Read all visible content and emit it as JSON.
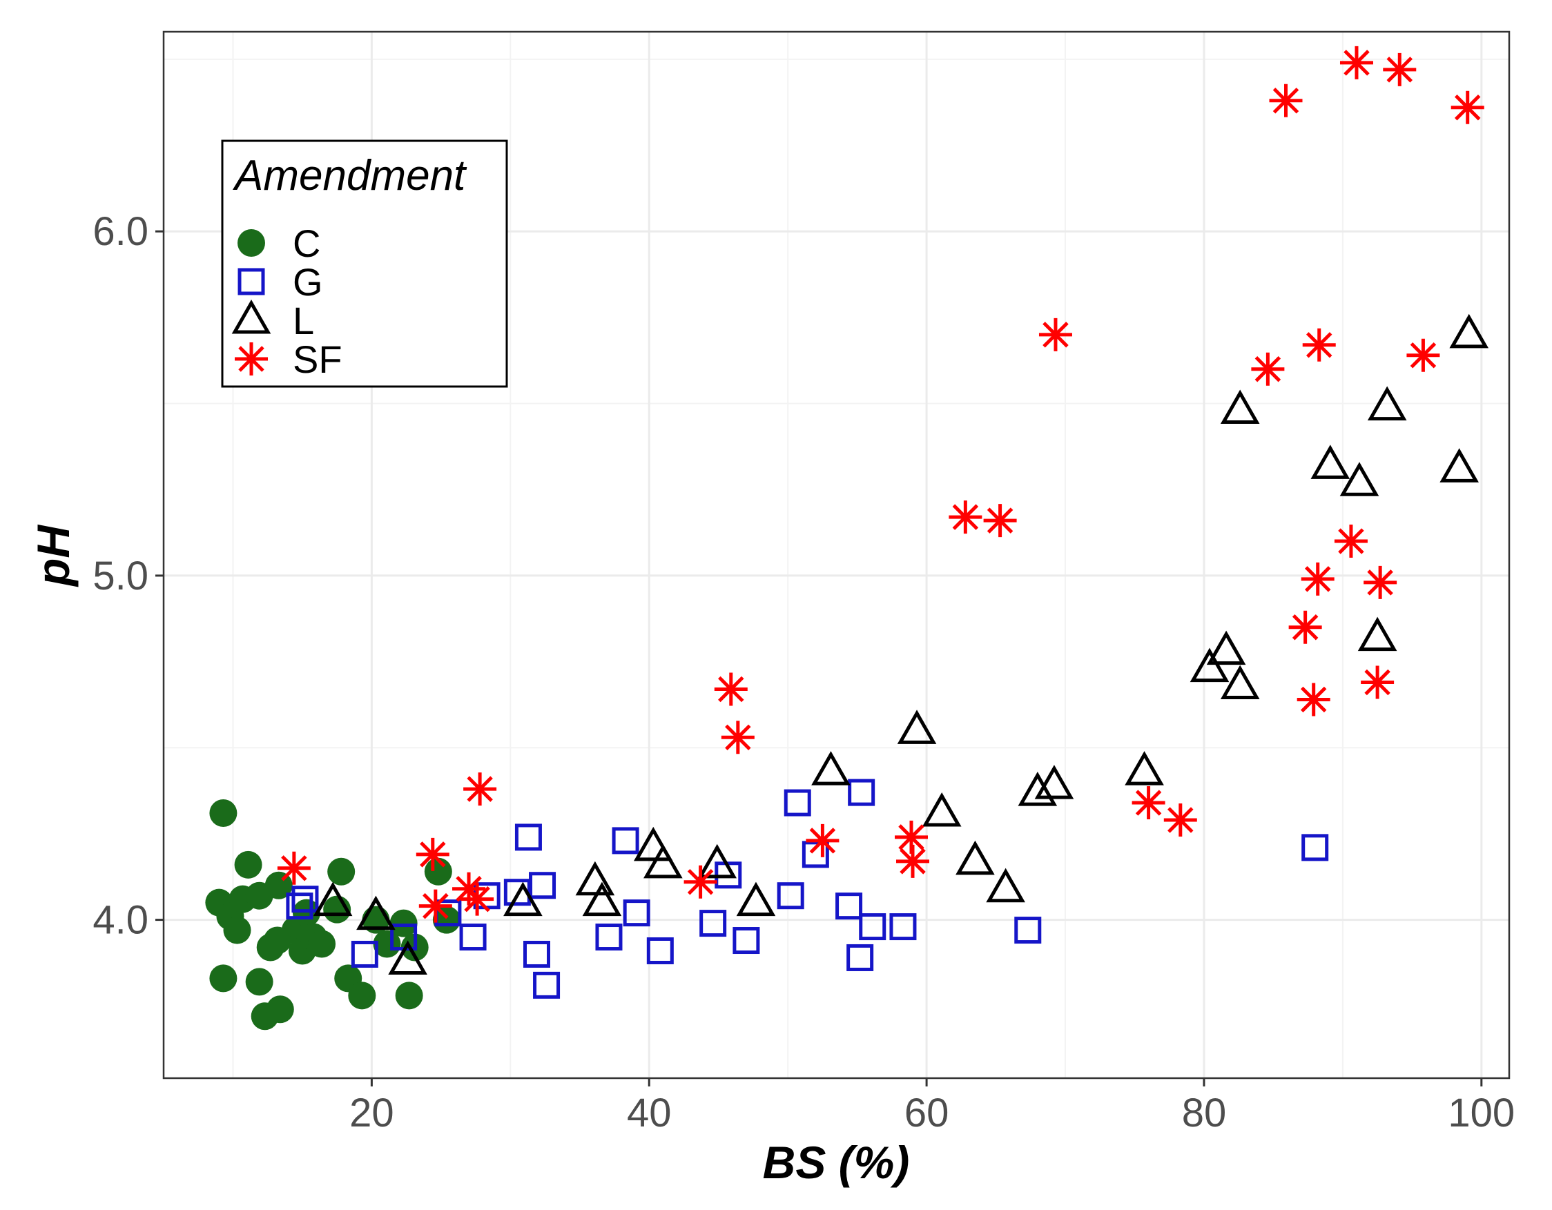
{
  "chart_data": {
    "type": "scatter",
    "xlabel": "BS (%)",
    "ylabel": "pH",
    "xlim": [
      5,
      102
    ],
    "ylim": [
      3.54,
      6.58
    ],
    "x_ticks": [
      20,
      40,
      60,
      80,
      100
    ],
    "x_tick_labels": [
      "20",
      "40",
      "60",
      "80",
      "100"
    ],
    "y_ticks": [
      4.0,
      5.0,
      6.0
    ],
    "y_tick_labels": [
      "4.0",
      "5.0",
      "6.0"
    ],
    "grid": true,
    "legend": {
      "title": "Amendment",
      "position": "top-left"
    },
    "series": [
      {
        "name": "C",
        "marker": "circle",
        "color": "#1a6b1a",
        "points": [
          [
            9.3,
            4.31
          ],
          [
            9.0,
            4.05
          ],
          [
            9.8,
            4.01
          ],
          [
            10.3,
            3.97
          ],
          [
            10.7,
            4.06
          ],
          [
            11.1,
            4.16
          ],
          [
            11.9,
            4.07
          ],
          [
            9.3,
            3.83
          ],
          [
            11.9,
            3.82
          ],
          [
            12.3,
            3.72
          ],
          [
            12.7,
            3.92
          ],
          [
            13.3,
            4.1
          ],
          [
            13.4,
            3.74
          ],
          [
            14.5,
            3.97
          ],
          [
            15.0,
            3.91
          ],
          [
            15.3,
            4.02
          ],
          [
            15.8,
            3.95
          ],
          [
            16.4,
            3.93
          ],
          [
            17.8,
            4.14
          ],
          [
            17.5,
            4.03
          ],
          [
            18.3,
            3.83
          ],
          [
            19.3,
            3.78
          ],
          [
            20.3,
            4.0
          ],
          [
            21.1,
            3.93
          ],
          [
            22.3,
            3.99
          ],
          [
            23.1,
            3.92
          ],
          [
            22.7,
            3.78
          ],
          [
            24.8,
            4.14
          ],
          [
            25.4,
            4.0
          ],
          [
            13.2,
            3.94
          ]
        ]
      },
      {
        "name": "G",
        "marker": "square",
        "color": "#1515c8",
        "points": [
          [
            14.8,
            4.04
          ],
          [
            15.2,
            4.06
          ],
          [
            19.5,
            3.9
          ],
          [
            22.3,
            3.95
          ],
          [
            25.5,
            4.02
          ],
          [
            27.3,
            3.95
          ],
          [
            28.3,
            4.07
          ],
          [
            30.5,
            4.08
          ],
          [
            31.3,
            4.24
          ],
          [
            31.9,
            3.9
          ],
          [
            32.3,
            4.1
          ],
          [
            32.6,
            3.81
          ],
          [
            37.1,
            3.95
          ],
          [
            38.3,
            4.23
          ],
          [
            39.1,
            4.02
          ],
          [
            40.8,
            3.91
          ],
          [
            44.6,
            3.99
          ],
          [
            45.7,
            4.13
          ],
          [
            47.0,
            3.94
          ],
          [
            50.2,
            4.07
          ],
          [
            50.7,
            4.34
          ],
          [
            52.0,
            4.19
          ],
          [
            54.4,
            4.04
          ],
          [
            55.3,
            4.37
          ],
          [
            55.2,
            3.89
          ],
          [
            56.1,
            3.98
          ],
          [
            58.3,
            3.98
          ],
          [
            67.3,
            3.97
          ],
          [
            88.0,
            4.21
          ]
        ]
      },
      {
        "name": "L",
        "marker": "triangle",
        "color": "#000000",
        "points": [
          [
            17.2,
            4.05
          ],
          [
            20.3,
            4.01
          ],
          [
            22.6,
            3.88
          ],
          [
            30.9,
            4.05
          ],
          [
            36.1,
            4.11
          ],
          [
            36.6,
            4.05
          ],
          [
            40.3,
            4.21
          ],
          [
            41.0,
            4.16
          ],
          [
            44.9,
            4.16
          ],
          [
            47.7,
            4.05
          ],
          [
            53.1,
            4.43
          ],
          [
            59.3,
            4.55
          ],
          [
            61.1,
            4.31
          ],
          [
            63.5,
            4.17
          ],
          [
            65.7,
            4.09
          ],
          [
            68.0,
            4.37
          ],
          [
            69.2,
            4.39
          ],
          [
            75.7,
            4.43
          ],
          [
            80.4,
            4.73
          ],
          [
            81.6,
            4.78
          ],
          [
            82.6,
            4.68
          ],
          [
            82.6,
            5.48
          ],
          [
            89.1,
            5.32
          ],
          [
            91.2,
            5.27
          ],
          [
            93.2,
            5.49
          ],
          [
            92.5,
            4.82
          ],
          [
            98.4,
            5.31
          ],
          [
            99.1,
            5.7
          ]
        ]
      },
      {
        "name": "SF",
        "marker": "asterisk",
        "color": "#ff0000",
        "points": [
          [
            14.4,
            4.15
          ],
          [
            24.4,
            4.19
          ],
          [
            24.6,
            4.04
          ],
          [
            27.0,
            4.09
          ],
          [
            27.6,
            4.06
          ],
          [
            27.8,
            4.38
          ],
          [
            43.7,
            4.11
          ],
          [
            45.9,
            4.67
          ],
          [
            46.4,
            4.53
          ],
          [
            52.5,
            4.23
          ],
          [
            58.9,
            4.24
          ],
          [
            59.0,
            4.17
          ],
          [
            62.8,
            5.17
          ],
          [
            65.3,
            5.16
          ],
          [
            69.3,
            5.7
          ],
          [
            76.0,
            4.34
          ],
          [
            78.3,
            4.29
          ],
          [
            84.6,
            5.6
          ],
          [
            85.9,
            6.38
          ],
          [
            87.3,
            4.85
          ],
          [
            87.9,
            4.64
          ],
          [
            88.2,
            4.99
          ],
          [
            88.3,
            5.67
          ],
          [
            90.6,
            5.1
          ],
          [
            91.0,
            6.49
          ],
          [
            92.5,
            4.69
          ],
          [
            92.7,
            4.98
          ],
          [
            94.1,
            6.47
          ],
          [
            95.8,
            5.64
          ],
          [
            99.0,
            6.36
          ]
        ]
      }
    ]
  }
}
